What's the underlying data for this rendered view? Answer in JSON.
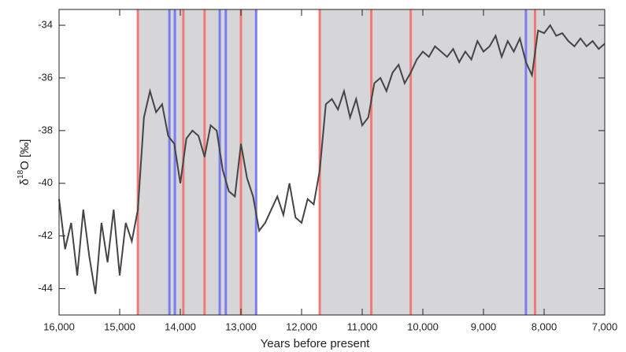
{
  "chart_data": {
    "type": "line",
    "x_label": "Years before present",
    "y_label": {
      "prefix": "δ",
      "sup": "18",
      "suffix": "O [‰]"
    },
    "xlim": [
      16000,
      7000
    ],
    "ylim": [
      -45,
      -33.4
    ],
    "xticks": [
      {
        "value": 16000,
        "label": "16,000"
      },
      {
        "value": 15000,
        "label": "15,000"
      },
      {
        "value": 14000,
        "label": "14,000"
      },
      {
        "value": 13000,
        "label": "13,000"
      },
      {
        "value": 12000,
        "label": "12,000"
      },
      {
        "value": 11000,
        "label": "11,000"
      },
      {
        "value": 10000,
        "label": "10,000"
      },
      {
        "value": 9000,
        "label": "9,000"
      },
      {
        "value": 8000,
        "label": "8,000"
      },
      {
        "value": 7000,
        "label": "7,000"
      }
    ],
    "yticks": [
      -44,
      -42,
      -40,
      -38,
      -36,
      -34
    ],
    "shade_color": "#d6d6d8",
    "shaded": [
      [
        14700,
        12750
      ],
      [
        11700,
        7000
      ]
    ],
    "event_lines": [
      {
        "color": "#f07a7a",
        "values": [
          14700,
          13950,
          13600,
          13000,
          11700,
          10850,
          10200,
          8150
        ]
      },
      {
        "color": "#7b7cf0",
        "values": [
          14180,
          14090,
          13350,
          13250,
          12750,
          8300
        ]
      }
    ],
    "series": [
      {
        "color": "#444444",
        "x": [
          16000,
          15900,
          15800,
          15700,
          15600,
          15500,
          15400,
          15300,
          15200,
          15100,
          15000,
          14900,
          14800,
          14700,
          14600,
          14500,
          14400,
          14300,
          14200,
          14100,
          14000,
          13900,
          13800,
          13700,
          13600,
          13500,
          13400,
          13300,
          13200,
          13100,
          13000,
          12900,
          12800,
          12700,
          12600,
          12500,
          12400,
          12300,
          12200,
          12100,
          12000,
          11900,
          11800,
          11700,
          11600,
          11500,
          11400,
          11300,
          11200,
          11100,
          11000,
          10900,
          10800,
          10700,
          10600,
          10500,
          10400,
          10300,
          10200,
          10100,
          10000,
          9900,
          9800,
          9700,
          9600,
          9500,
          9400,
          9300,
          9200,
          9100,
          9000,
          8900,
          8800,
          8700,
          8600,
          8500,
          8400,
          8300,
          8200,
          8100,
          8000,
          7900,
          7800,
          7700,
          7600,
          7500,
          7400,
          7300,
          7200,
          7100,
          7000
        ],
        "values": [
          -40.6,
          -42.5,
          -41.5,
          -43.5,
          -41.0,
          -42.8,
          -44.2,
          -41.5,
          -43.0,
          -41.0,
          -43.5,
          -41.5,
          -42.2,
          -41.0,
          -37.5,
          -36.5,
          -37.3,
          -37.0,
          -38.2,
          -38.5,
          -40.0,
          -38.3,
          -38.0,
          -38.2,
          -39.0,
          -37.8,
          -38.0,
          -39.5,
          -40.3,
          -40.5,
          -38.5,
          -39.8,
          -40.5,
          -41.8,
          -41.5,
          -41.0,
          -40.5,
          -41.2,
          -40.0,
          -41.3,
          -41.5,
          -40.6,
          -40.8,
          -39.5,
          -37.0,
          -36.8,
          -37.2,
          -36.5,
          -37.5,
          -36.8,
          -37.8,
          -37.5,
          -36.2,
          -36.0,
          -36.5,
          -35.8,
          -35.5,
          -36.2,
          -35.8,
          -35.3,
          -35.0,
          -35.2,
          -34.8,
          -35.0,
          -35.2,
          -34.9,
          -35.4,
          -35.0,
          -35.3,
          -34.6,
          -35.0,
          -34.8,
          -34.4,
          -35.2,
          -34.6,
          -35.0,
          -34.5,
          -35.4,
          -35.9,
          -34.2,
          -34.3,
          -34.0,
          -34.4,
          -34.3,
          -34.6,
          -34.8,
          -34.5,
          -34.8,
          -34.6,
          -34.9,
          -34.7
        ]
      }
    ]
  }
}
